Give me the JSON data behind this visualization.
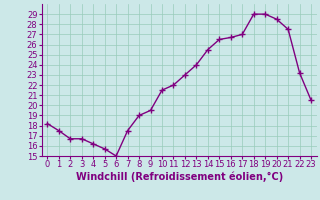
{
  "x": [
    0,
    1,
    2,
    3,
    4,
    5,
    6,
    7,
    8,
    9,
    10,
    11,
    12,
    13,
    14,
    15,
    16,
    17,
    18,
    19,
    20,
    21,
    22,
    23
  ],
  "y": [
    18.2,
    17.5,
    16.7,
    16.7,
    16.2,
    15.7,
    15.0,
    17.5,
    19.0,
    19.5,
    21.5,
    22.0,
    23.0,
    24.0,
    25.5,
    26.5,
    26.7,
    27.0,
    29.0,
    29.0,
    28.5,
    27.5,
    23.2,
    20.5
  ],
  "line_color": "#800080",
  "marker": "+",
  "marker_size": 4,
  "bg_color": "#cce8e8",
  "grid_color": "#99ccbb",
  "xlabel": "Windchill (Refroidissement éolien,°C)",
  "xlabel_color": "#800080",
  "xlabel_fontsize": 7,
  "tick_color": "#800080",
  "tick_fontsize": 6,
  "ylim": [
    15,
    30
  ],
  "yticks": [
    15,
    16,
    17,
    18,
    19,
    20,
    21,
    22,
    23,
    24,
    25,
    26,
    27,
    28,
    29
  ],
  "xticks": [
    0,
    1,
    2,
    3,
    4,
    5,
    6,
    7,
    8,
    9,
    10,
    11,
    12,
    13,
    14,
    15,
    16,
    17,
    18,
    19,
    20,
    21,
    22,
    23
  ],
  "line_width": 1.0,
  "spine_color": "#800080"
}
